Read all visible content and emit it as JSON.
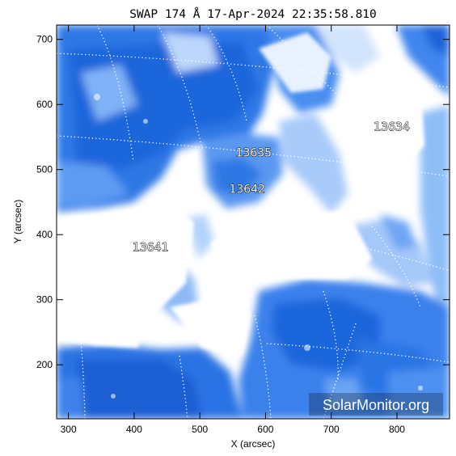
{
  "title": "SWAP 174 Å 17-Apr-2024 22:35:58.810",
  "axes": {
    "xlabel": "X (arcsec)",
    "ylabel": "Y (arcsec)",
    "xticks": [
      {
        "value": 300,
        "label": "300"
      },
      {
        "value": 400,
        "label": "400"
      },
      {
        "value": 500,
        "label": "500"
      },
      {
        "value": 600,
        "label": "600"
      },
      {
        "value": 700,
        "label": "700"
      },
      {
        "value": 800,
        "label": "800"
      }
    ],
    "yticks": [
      {
        "value": 200,
        "label": "200"
      },
      {
        "value": 300,
        "label": "300"
      },
      {
        "value": 400,
        "label": "400"
      },
      {
        "value": 500,
        "label": "500"
      },
      {
        "value": 600,
        "label": "600"
      },
      {
        "value": 700,
        "label": "700"
      }
    ],
    "xlim": [
      282,
      880
    ],
    "ylim": [
      117,
      722
    ]
  },
  "regions": [
    {
      "id": "13635",
      "x": 582,
      "y": 520
    },
    {
      "id": "13634",
      "x": 792,
      "y": 560
    },
    {
      "id": "13642",
      "x": 572,
      "y": 464
    },
    {
      "id": "13641",
      "x": 425,
      "y": 375
    }
  ],
  "watermark": "SolarMonitor.org",
  "colors": {
    "dark_blue": "#1d63d8",
    "mid_blue": "#4a8ef0",
    "light_blue": "#9cc4fa",
    "grid": "#ffffff"
  }
}
